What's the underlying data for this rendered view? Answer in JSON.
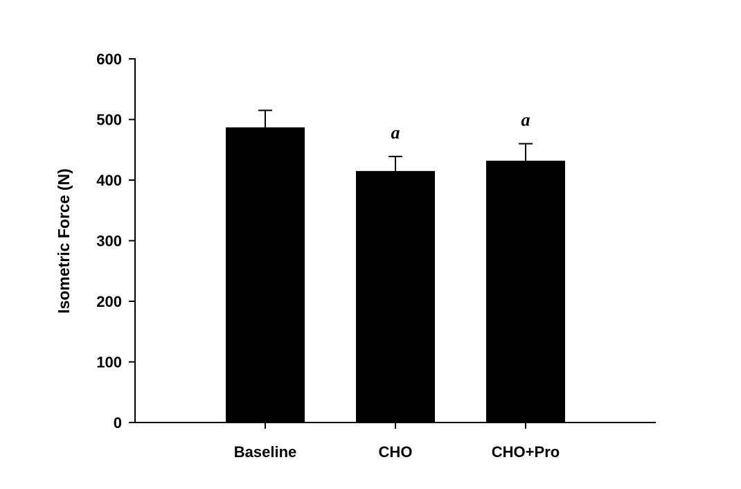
{
  "chart_data": {
    "type": "bar",
    "title": "",
    "xlabel": "",
    "ylabel": "Isometric Force (N)",
    "ylim": [
      0,
      600
    ],
    "yticks": [
      0,
      100,
      200,
      300,
      400,
      500,
      600
    ],
    "categories": [
      "Baseline",
      "CHO",
      "CHO+Pro"
    ],
    "values": [
      487,
      415,
      432
    ],
    "errors": [
      28,
      24,
      28
    ],
    "annotations": [
      "",
      "a",
      "a"
    ],
    "bar_color": "#000000",
    "grid": false
  }
}
